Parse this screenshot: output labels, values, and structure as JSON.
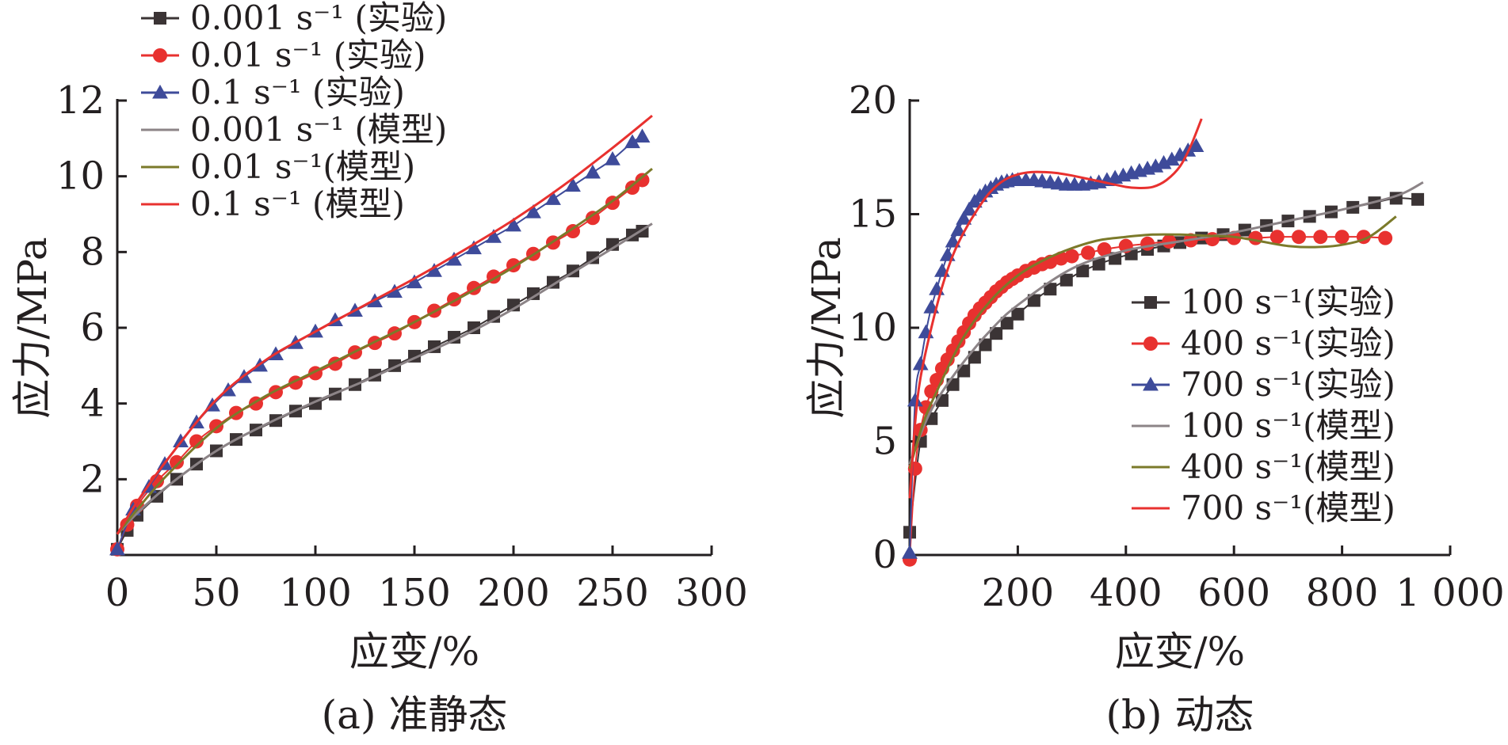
{
  "figure": {
    "panels": [
      "panel_a",
      "panel_b"
    ]
  },
  "chart_data": [
    {
      "id": "panel_a",
      "type": "line",
      "caption": "(a) 准静态",
      "xlabel": "应变/%",
      "ylabel": "应力/MPa",
      "xlim": [
        0,
        300
      ],
      "ylim": [
        0,
        12
      ],
      "xticks": [
        0,
        50,
        100,
        150,
        200,
        250,
        300
      ],
      "xtick_labels": [
        "0",
        "50",
        "100",
        "150",
        "200",
        "250",
        "300"
      ],
      "yticks": [
        2,
        4,
        6,
        8,
        10,
        12
      ],
      "ytick_labels": [
        "2",
        "4",
        "6",
        "8",
        "10",
        "12"
      ],
      "grid": false,
      "legend_position": "top-left (outside plot area)",
      "series": [
        {
          "name": "0.001 s⁻¹ (实验)",
          "kind": "experiment",
          "marker": "square",
          "color": "#3b3435",
          "x": [
            0,
            5,
            10,
            20,
            30,
            40,
            50,
            60,
            70,
            80,
            90,
            100,
            110,
            120,
            130,
            140,
            150,
            160,
            170,
            180,
            190,
            200,
            210,
            220,
            230,
            240,
            250,
            260,
            265
          ],
          "y": [
            0.15,
            0.65,
            1.05,
            1.55,
            2.0,
            2.4,
            2.75,
            3.05,
            3.3,
            3.55,
            3.8,
            4.0,
            4.25,
            4.5,
            4.75,
            5.0,
            5.25,
            5.5,
            5.75,
            6.0,
            6.3,
            6.6,
            6.9,
            7.2,
            7.5,
            7.85,
            8.2,
            8.45,
            8.55
          ]
        },
        {
          "name": "0.01 s⁻¹ (实验)",
          "kind": "experiment",
          "marker": "circle",
          "color": "#e8312f",
          "x": [
            0,
            5,
            10,
            20,
            30,
            40,
            50,
            60,
            70,
            80,
            90,
            100,
            110,
            120,
            130,
            140,
            150,
            160,
            170,
            180,
            190,
            200,
            210,
            220,
            230,
            240,
            250,
            260,
            265
          ],
          "y": [
            0.15,
            0.8,
            1.3,
            1.95,
            2.45,
            3.0,
            3.4,
            3.75,
            4.0,
            4.3,
            4.55,
            4.8,
            5.05,
            5.35,
            5.6,
            5.85,
            6.15,
            6.45,
            6.75,
            7.05,
            7.35,
            7.65,
            7.95,
            8.25,
            8.55,
            8.9,
            9.3,
            9.7,
            9.9
          ]
        },
        {
          "name": "0.1 s⁻¹ (实验)",
          "kind": "experiment",
          "marker": "triangle",
          "color": "#3e4b9a",
          "x": [
            0,
            8,
            16,
            24,
            32,
            40,
            48,
            56,
            64,
            72,
            80,
            90,
            100,
            110,
            120,
            130,
            140,
            150,
            160,
            170,
            180,
            190,
            200,
            210,
            220,
            230,
            240,
            250,
            260,
            265
          ],
          "y": [
            0.15,
            1.2,
            1.8,
            2.4,
            3.0,
            3.5,
            3.95,
            4.35,
            4.7,
            5.0,
            5.3,
            5.6,
            5.9,
            6.2,
            6.45,
            6.7,
            6.95,
            7.2,
            7.5,
            7.8,
            8.1,
            8.4,
            8.7,
            9.05,
            9.4,
            9.75,
            10.1,
            10.45,
            10.9,
            11.05
          ]
        },
        {
          "name": "0.001 s⁻¹ (模型)",
          "kind": "model",
          "color": "#8c8487",
          "x": [
            0,
            10,
            25,
            50,
            75,
            100,
            125,
            150,
            175,
            200,
            225,
            250,
            270
          ],
          "y": [
            0.55,
            1.1,
            1.8,
            2.75,
            3.45,
            4.05,
            4.6,
            5.2,
            5.8,
            6.5,
            7.3,
            8.1,
            8.75
          ]
        },
        {
          "name": "0.01 s⁻¹(模型)",
          "kind": "model",
          "color": "#7b7a2a",
          "x": [
            0,
            10,
            25,
            50,
            75,
            100,
            125,
            150,
            175,
            200,
            225,
            250,
            270
          ],
          "y": [
            0.55,
            1.2,
            2.1,
            3.35,
            4.2,
            4.85,
            5.5,
            6.15,
            6.85,
            7.6,
            8.45,
            9.35,
            10.2
          ]
        },
        {
          "name": "0.1 s⁻¹ (模型)",
          "kind": "model",
          "color": "#e8312f",
          "x": [
            0,
            10,
            25,
            50,
            75,
            100,
            125,
            150,
            175,
            200,
            225,
            250,
            270
          ],
          "y": [
            0.55,
            1.4,
            2.5,
            4.1,
            5.15,
            5.9,
            6.6,
            7.3,
            8.05,
            8.85,
            9.75,
            10.75,
            11.6
          ]
        }
      ]
    },
    {
      "id": "panel_b",
      "type": "line",
      "caption": "(b) 动态",
      "xlabel": "应变/%",
      "ylabel": "应力/MPa",
      "xlim": [
        0,
        1000
      ],
      "ylim": [
        0,
        20
      ],
      "xticks": [
        200,
        400,
        600,
        800,
        1000
      ],
      "xtick_labels": [
        "200",
        "400",
        "600",
        "800",
        "1 000"
      ],
      "yticks": [
        0,
        5,
        10,
        15,
        20
      ],
      "ytick_labels": [
        "0",
        "5",
        "10",
        "15",
        "20"
      ],
      "grid": false,
      "legend_position": "center-right (inside plot area)",
      "series": [
        {
          "name": "100 s⁻¹(实验)",
          "kind": "experiment",
          "marker": "square",
          "color": "#3b3435",
          "x": [
            0,
            20,
            40,
            60,
            80,
            100,
            120,
            140,
            160,
            180,
            200,
            230,
            260,
            290,
            320,
            350,
            380,
            410,
            440,
            470,
            500,
            540,
            580,
            620,
            660,
            700,
            740,
            780,
            820,
            860,
            900,
            940
          ],
          "y": [
            1.0,
            5.0,
            6.0,
            6.8,
            7.5,
            8.1,
            8.7,
            9.25,
            9.75,
            10.2,
            10.6,
            11.2,
            11.7,
            12.1,
            12.5,
            12.8,
            13.05,
            13.25,
            13.45,
            13.6,
            13.75,
            13.95,
            14.1,
            14.3,
            14.5,
            14.7,
            14.9,
            15.1,
            15.3,
            15.5,
            15.7,
            15.65
          ]
        },
        {
          "name": "400 s⁻¹(实验)",
          "kind": "experiment",
          "marker": "circle",
          "color": "#e8312f",
          "x": [
            0,
            10,
            20,
            30,
            40,
            50,
            60,
            70,
            80,
            90,
            100,
            110,
            120,
            130,
            140,
            150,
            160,
            170,
            180,
            190,
            200,
            215,
            230,
            245,
            260,
            280,
            300,
            330,
            360,
            400,
            440,
            480,
            520,
            560,
            600,
            640,
            680,
            720,
            760,
            800,
            840,
            880
          ],
          "y": [
            -0.2,
            3.8,
            5.5,
            6.5,
            7.2,
            7.7,
            8.2,
            8.6,
            9.0,
            9.4,
            9.8,
            10.2,
            10.55,
            10.85,
            11.1,
            11.35,
            11.6,
            11.8,
            12.0,
            12.15,
            12.3,
            12.5,
            12.65,
            12.8,
            12.9,
            13.05,
            13.15,
            13.3,
            13.45,
            13.6,
            13.7,
            13.8,
            13.85,
            13.9,
            13.95,
            13.95,
            14.0,
            14.0,
            14.0,
            14.0,
            14.0,
            13.95
          ]
        },
        {
          "name": "700 s⁻¹(实验)",
          "kind": "experiment",
          "marker": "triangle",
          "color": "#3e4b9a",
          "x": [
            0,
            10,
            20,
            30,
            40,
            50,
            60,
            70,
            80,
            90,
            100,
            110,
            120,
            130,
            140,
            150,
            160,
            170,
            180,
            190,
            200,
            215,
            230,
            245,
            260,
            275,
            290,
            305,
            320,
            335,
            350,
            365,
            380,
            395,
            410,
            425,
            440,
            455,
            470,
            485,
            500,
            515,
            530
          ],
          "y": [
            0.1,
            6.8,
            8.4,
            9.8,
            10.9,
            11.7,
            12.5,
            13.2,
            13.8,
            14.3,
            14.8,
            15.2,
            15.55,
            15.8,
            16.0,
            16.15,
            16.3,
            16.4,
            16.45,
            16.5,
            16.5,
            16.5,
            16.5,
            16.45,
            16.4,
            16.35,
            16.3,
            16.3,
            16.3,
            16.35,
            16.4,
            16.5,
            16.6,
            16.7,
            16.8,
            16.9,
            17.0,
            17.1,
            17.25,
            17.4,
            17.6,
            17.8,
            18.0
          ]
        },
        {
          "name": "100 s⁻¹(模型)",
          "kind": "model",
          "color": "#8c8487",
          "x": [
            0,
            25,
            50,
            100,
            150,
            200,
            300,
            400,
            500,
            600,
            700,
            800,
            900,
            950
          ],
          "y": [
            4.0,
            5.6,
            6.8,
            8.5,
            9.9,
            11.0,
            12.6,
            13.4,
            13.8,
            14.2,
            14.7,
            15.2,
            15.8,
            16.4
          ]
        },
        {
          "name": "400 s⁻¹(模型)",
          "kind": "model",
          "color": "#7b7a2a",
          "x": [
            0,
            25,
            50,
            100,
            150,
            200,
            250,
            300,
            350,
            400,
            450,
            500,
            550,
            600,
            650,
            700,
            750,
            800,
            850,
            900
          ],
          "y": [
            3.8,
            5.8,
            7.2,
            9.6,
            11.2,
            12.3,
            13.0,
            13.5,
            13.85,
            14.0,
            14.1,
            14.1,
            14.05,
            14.0,
            13.8,
            13.6,
            13.55,
            13.65,
            14.0,
            14.9
          ]
        },
        {
          "name": "700 s⁻¹(模型)",
          "kind": "model",
          "color": "#e8312f",
          "x": [
            0,
            10,
            20,
            40,
            60,
            80,
            100,
            125,
            150,
            175,
            200,
            225,
            250,
            275,
            300,
            350,
            400,
            425,
            450,
            475,
            500,
            520,
            540
          ],
          "y": [
            2.5,
            5.8,
            7.8,
            10.0,
            11.8,
            13.2,
            14.2,
            15.2,
            16.0,
            16.5,
            16.75,
            16.85,
            16.85,
            16.8,
            16.7,
            16.45,
            16.2,
            16.15,
            16.2,
            16.5,
            17.1,
            18.0,
            19.2
          ]
        }
      ]
    }
  ]
}
